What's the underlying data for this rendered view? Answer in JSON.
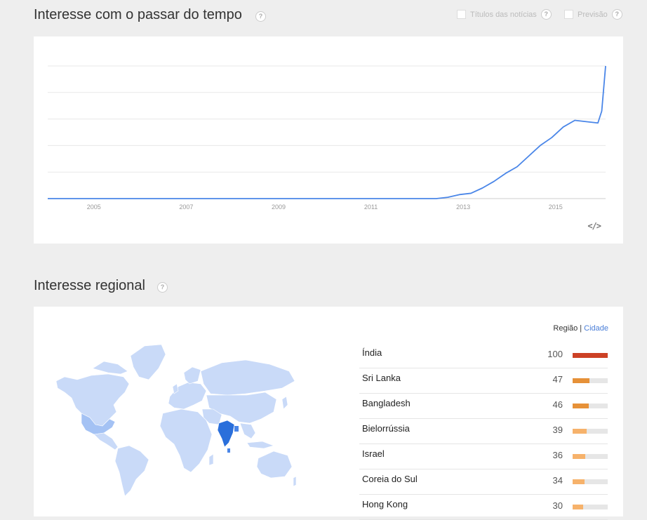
{
  "section1": {
    "title": "Interesse com o passar do tempo",
    "help": "?",
    "options": [
      {
        "label": "Títulos das notícias",
        "help": "?"
      },
      {
        "label": "Previsão",
        "help": "?"
      }
    ],
    "embed_icon": "</>",
    "colors": {
      "line": "#4a86e8",
      "grid": "#e8e8e8",
      "axis": "#999999"
    }
  },
  "chart_data": {
    "type": "line",
    "title": "",
    "xlabel": "",
    "ylabel": "",
    "x_ticks": [
      "2005",
      "2007",
      "2009",
      "2011",
      "2013",
      "2015"
    ],
    "xlim": [
      "2004-01",
      "2016-02"
    ],
    "ylim": [
      0,
      100
    ],
    "grid": true,
    "series": [
      {
        "points": [
          [
            "2004-01",
            0
          ],
          [
            "2012-06",
            0
          ],
          [
            "2012-09",
            1
          ],
          [
            "2012-12",
            3
          ],
          [
            "2013-03",
            4
          ],
          [
            "2013-06",
            8
          ],
          [
            "2013-09",
            13
          ],
          [
            "2013-12",
            19
          ],
          [
            "2014-03",
            24
          ],
          [
            "2014-06",
            32
          ],
          [
            "2014-09",
            40
          ],
          [
            "2014-12",
            46
          ],
          [
            "2015-03",
            54
          ],
          [
            "2015-06",
            59
          ],
          [
            "2015-09",
            58
          ],
          [
            "2015-12",
            57
          ],
          [
            "2016-01",
            66
          ],
          [
            "2016-02",
            100
          ]
        ]
      }
    ]
  },
  "section2": {
    "title": "Interesse regional",
    "help": "?",
    "toggle": {
      "region": "Região",
      "city": "Cidade"
    },
    "highlight_color": "#2a6fdb",
    "rankings": [
      {
        "name": "Índia",
        "value": 100,
        "color": "#cc4125"
      },
      {
        "name": "Sri Lanka",
        "value": 47,
        "color": "#e69138"
      },
      {
        "name": "Bangladesh",
        "value": 46,
        "color": "#e69138"
      },
      {
        "name": "Bielorrússia",
        "value": 39,
        "color": "#f6b26b"
      },
      {
        "name": "Israel",
        "value": 36,
        "color": "#f6b26b"
      },
      {
        "name": "Coreia do Sul",
        "value": 34,
        "color": "#f6b26b"
      },
      {
        "name": "Hong Kong",
        "value": 30,
        "color": "#f6b26b"
      }
    ]
  }
}
